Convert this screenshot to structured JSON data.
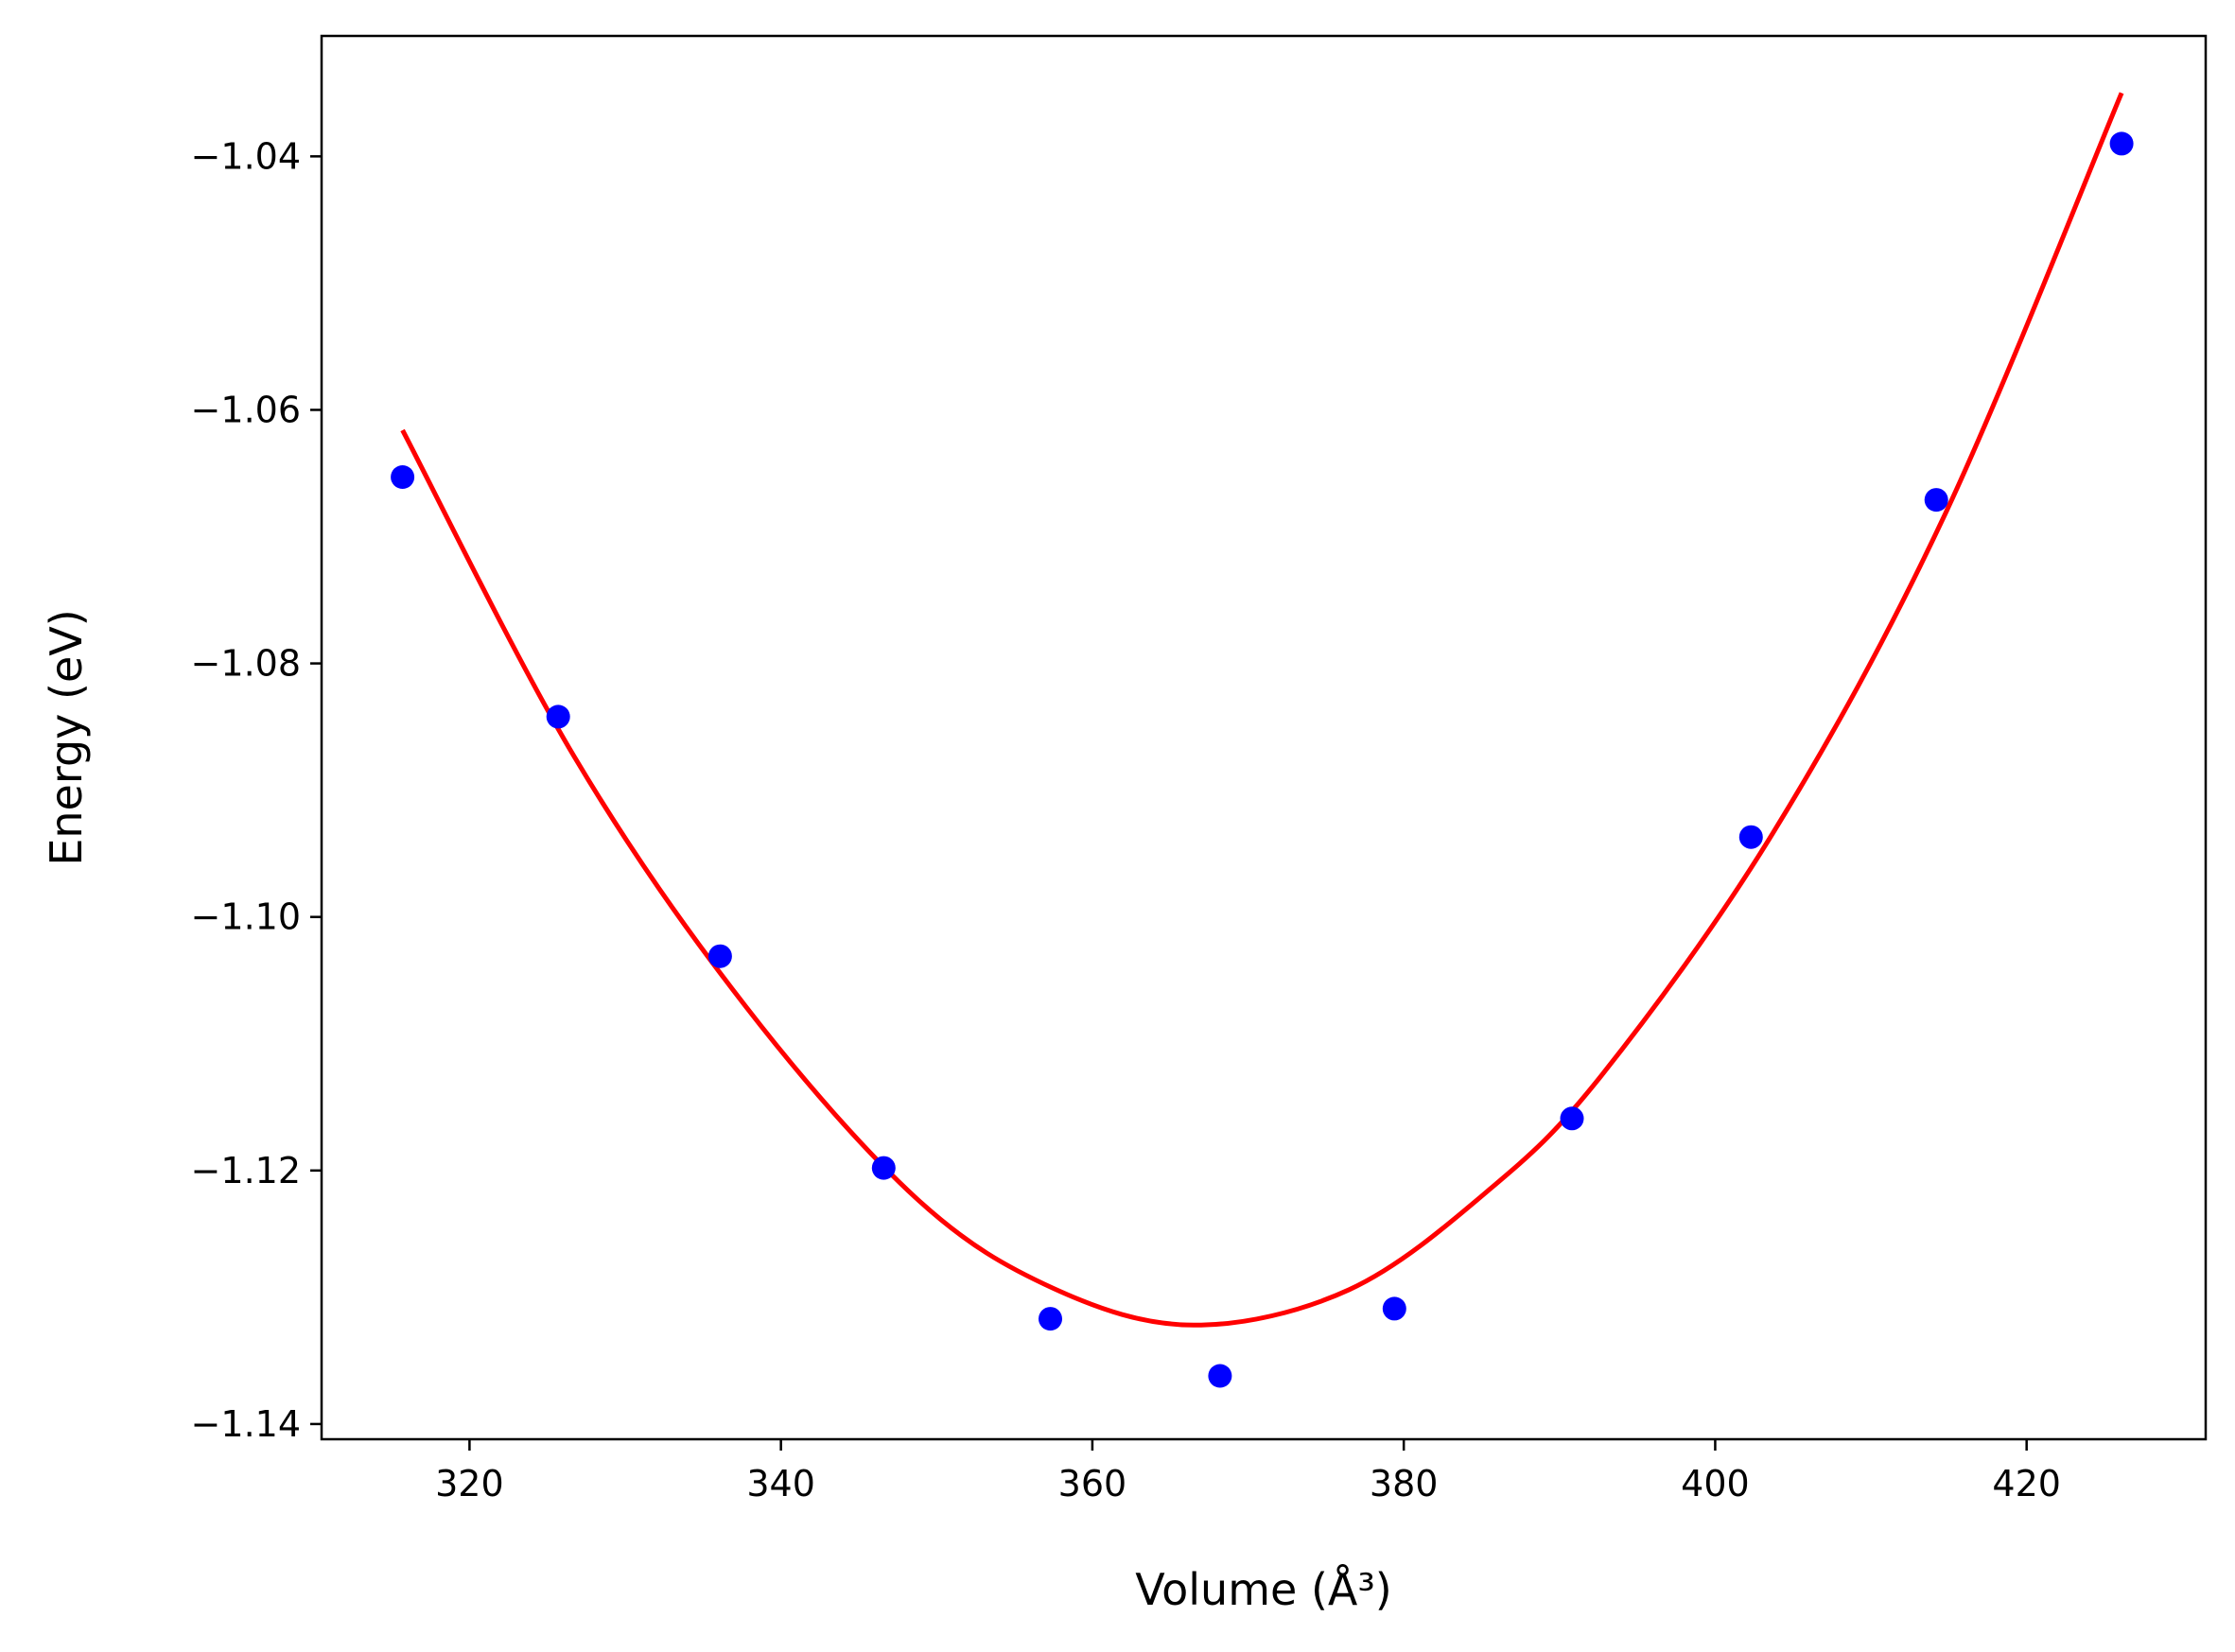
{
  "chart_data": {
    "type": "scatter",
    "xlabel": "Volume (Å³)",
    "ylabel": "Energy (eV)",
    "xlim": [
      310.5,
      431.5
    ],
    "ylim": [
      -1.1412,
      -1.0305
    ],
    "x_ticks": [
      320,
      340,
      360,
      380,
      400,
      420
    ],
    "y_ticks": [
      -1.04,
      -1.06,
      -1.08,
      -1.1,
      -1.12,
      -1.14
    ],
    "x_tick_labels": [
      "320",
      "340",
      "360",
      "380",
      "400",
      "420"
    ],
    "y_tick_labels": [
      "−1.04",
      "−1.06",
      "−1.08",
      "−1.10",
      "−1.12",
      "−1.14"
    ],
    "grid": false,
    "legend": "none",
    "series": [
      {
        "kind": "points",
        "color": "#0000ff",
        "points": [
          {
            "x": 315.7,
            "y": -1.0653
          },
          {
            "x": 325.7,
            "y": -1.0842
          },
          {
            "x": 336.1,
            "y": -1.1031
          },
          {
            "x": 346.6,
            "y": -1.1198
          },
          {
            "x": 357.3,
            "y": -1.1317
          },
          {
            "x": 368.2,
            "y": -1.1362
          },
          {
            "x": 379.4,
            "y": -1.1309
          },
          {
            "x": 390.8,
            "y": -1.1159
          },
          {
            "x": 402.3,
            "y": -1.0937
          },
          {
            "x": 414.2,
            "y": -1.0671
          },
          {
            "x": 426.1,
            "y": -1.039
          }
        ]
      },
      {
        "kind": "fit-curve",
        "color": "#ff0000",
        "points": [
          {
            "x": 315.7,
            "y": -1.0616
          },
          {
            "x": 326.7,
            "y": -1.0873
          },
          {
            "x": 337.7,
            "y": -1.107
          },
          {
            "x": 348.7,
            "y": -1.1222
          },
          {
            "x": 357.5,
            "y": -1.1293
          },
          {
            "x": 366.5,
            "y": -1.1322
          },
          {
            "x": 376.5,
            "y": -1.1294
          },
          {
            "x": 385.5,
            "y": -1.1215
          },
          {
            "x": 392.7,
            "y": -1.1125
          },
          {
            "x": 403.7,
            "y": -1.0934
          },
          {
            "x": 414.7,
            "y": -1.0684
          },
          {
            "x": 426.1,
            "y": -1.035
          }
        ]
      }
    ]
  }
}
